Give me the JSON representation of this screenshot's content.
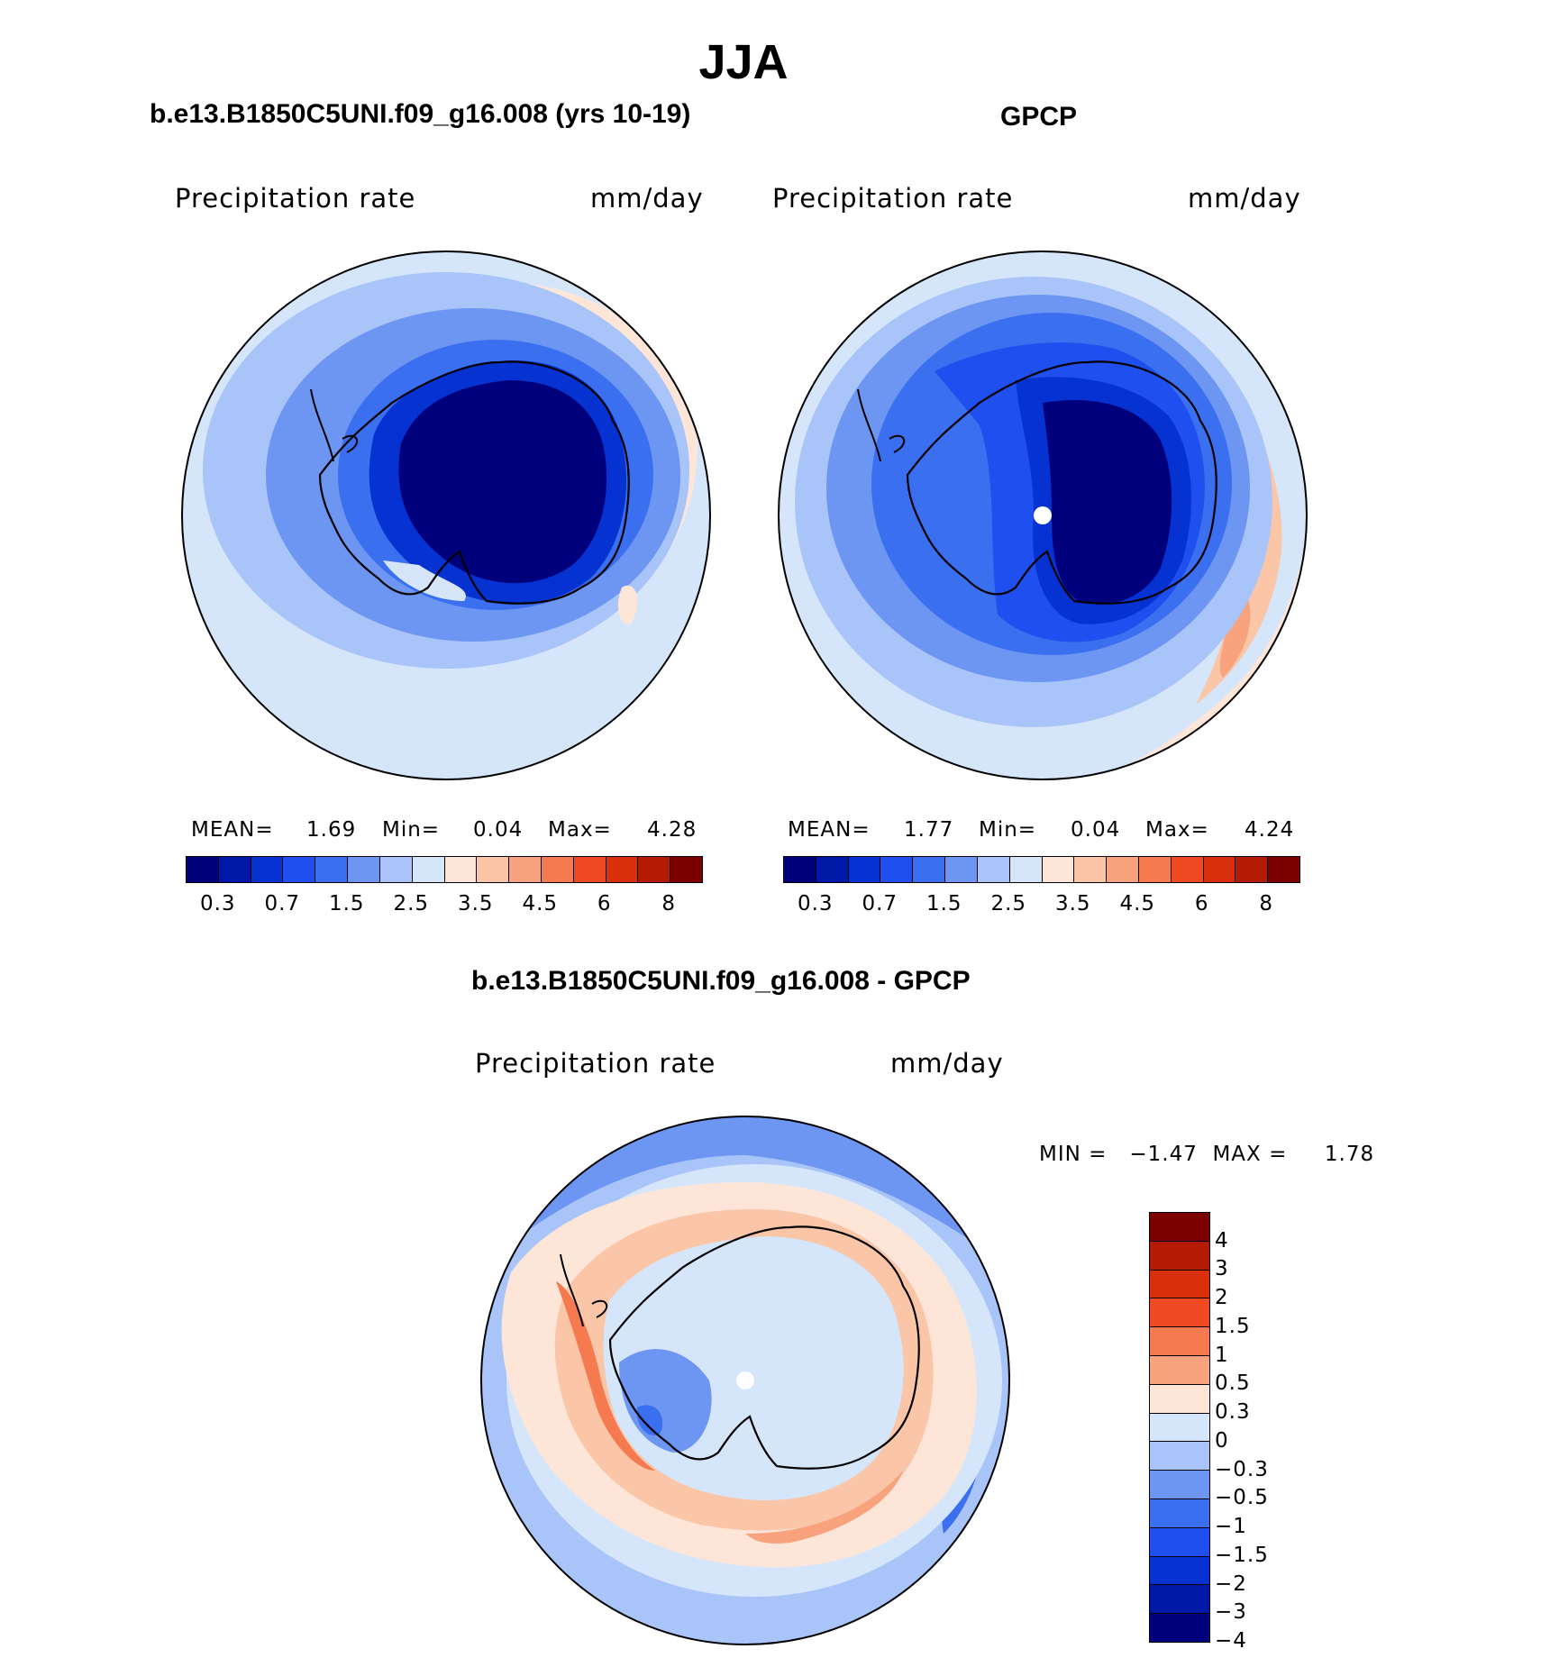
{
  "main_title": "JJA",
  "panels": {
    "left": {
      "title": "b.e13.B1850C5UNI.f09_g16.008 (yrs 10-19)",
      "variable": "Precipitation  rate",
      "units": "mm/day",
      "mean_label": "MEAN=",
      "mean": "1.69",
      "min_label": "Min=",
      "min": "0.04",
      "max_label": "Max=",
      "max": "4.28"
    },
    "right": {
      "title": "GPCP",
      "variable": "Precipitation  rate",
      "units": "mm/day",
      "mean_label": "MEAN=",
      "mean": "1.77",
      "min_label": "Min=",
      "min": "0.04",
      "max_label": "Max=",
      "max": "4.24"
    },
    "diff": {
      "title": "b.e13.B1850C5UNI.f09_g16.008 - GPCP",
      "variable": "Precipitation  rate",
      "units": "mm/day",
      "minmax_text": "MIN =   −1.47  MAX =     1.78"
    }
  },
  "colorbar_abs": {
    "colors": [
      "#00007d",
      "#0018a8",
      "#0532d0",
      "#1f4fef",
      "#3a6fef",
      "#6d95f2",
      "#a8c4f8",
      "#d5e6fb",
      "#fde6d8",
      "#fbc5a8",
      "#f8a27e",
      "#f57a4f",
      "#f04a22",
      "#d9300b",
      "#b31b05",
      "#7d0000"
    ],
    "tick_labels": [
      "0.3",
      "0.7",
      "1.5",
      "2.5",
      "3.5",
      "4.5",
      "6",
      "8"
    ]
  },
  "colorbar_diff": {
    "colors": [
      "#7d0000",
      "#b31b05",
      "#d9300b",
      "#f04a22",
      "#f57a4f",
      "#f8a27e",
      "#fde6d8",
      "#d5e6fb",
      "#a8c4f8",
      "#6d95f2",
      "#3a6fef",
      "#1f4fef",
      "#0532d0",
      "#0018a8",
      "#00007d"
    ],
    "tick_labels": [
      "4",
      "3",
      "2",
      "1.5",
      "1",
      "0.5",
      "0.3",
      "0",
      "−0.3",
      "−0.5",
      "−1",
      "−1.5",
      "−2",
      "−3",
      "−4"
    ]
  },
  "chart_data": [
    {
      "type": "heatmap",
      "title": "b.e13.B1850C5UNI.f09_g16.008 (yrs 10-19)",
      "season": "JJA",
      "variable": "Precipitation rate",
      "units": "mm/day",
      "projection": "south polar stereographic",
      "mean": 1.69,
      "min": 0.04,
      "max": 4.28,
      "levels": [
        0.2,
        0.3,
        0.5,
        0.7,
        1,
        1.5,
        2,
        2.5,
        3,
        3.5,
        4,
        4.5,
        5,
        6,
        7,
        8
      ]
    },
    {
      "type": "heatmap",
      "title": "GPCP",
      "season": "JJA",
      "variable": "Precipitation rate",
      "units": "mm/day",
      "projection": "south polar stereographic",
      "mean": 1.77,
      "min": 0.04,
      "max": 4.24,
      "levels": [
        0.2,
        0.3,
        0.5,
        0.7,
        1,
        1.5,
        2,
        2.5,
        3,
        3.5,
        4,
        4.5,
        5,
        6,
        7,
        8
      ]
    },
    {
      "type": "heatmap",
      "title": "b.e13.B1850C5UNI.f09_g16.008 - GPCP",
      "season": "JJA",
      "variable": "Precipitation rate",
      "units": "mm/day",
      "projection": "south polar stereographic",
      "min": -1.47,
      "max": 1.78,
      "levels": [
        -4,
        -3,
        -2,
        -1.5,
        -1,
        -0.5,
        -0.3,
        0,
        0.3,
        0.5,
        1,
        1.5,
        2,
        3,
        4
      ]
    }
  ]
}
